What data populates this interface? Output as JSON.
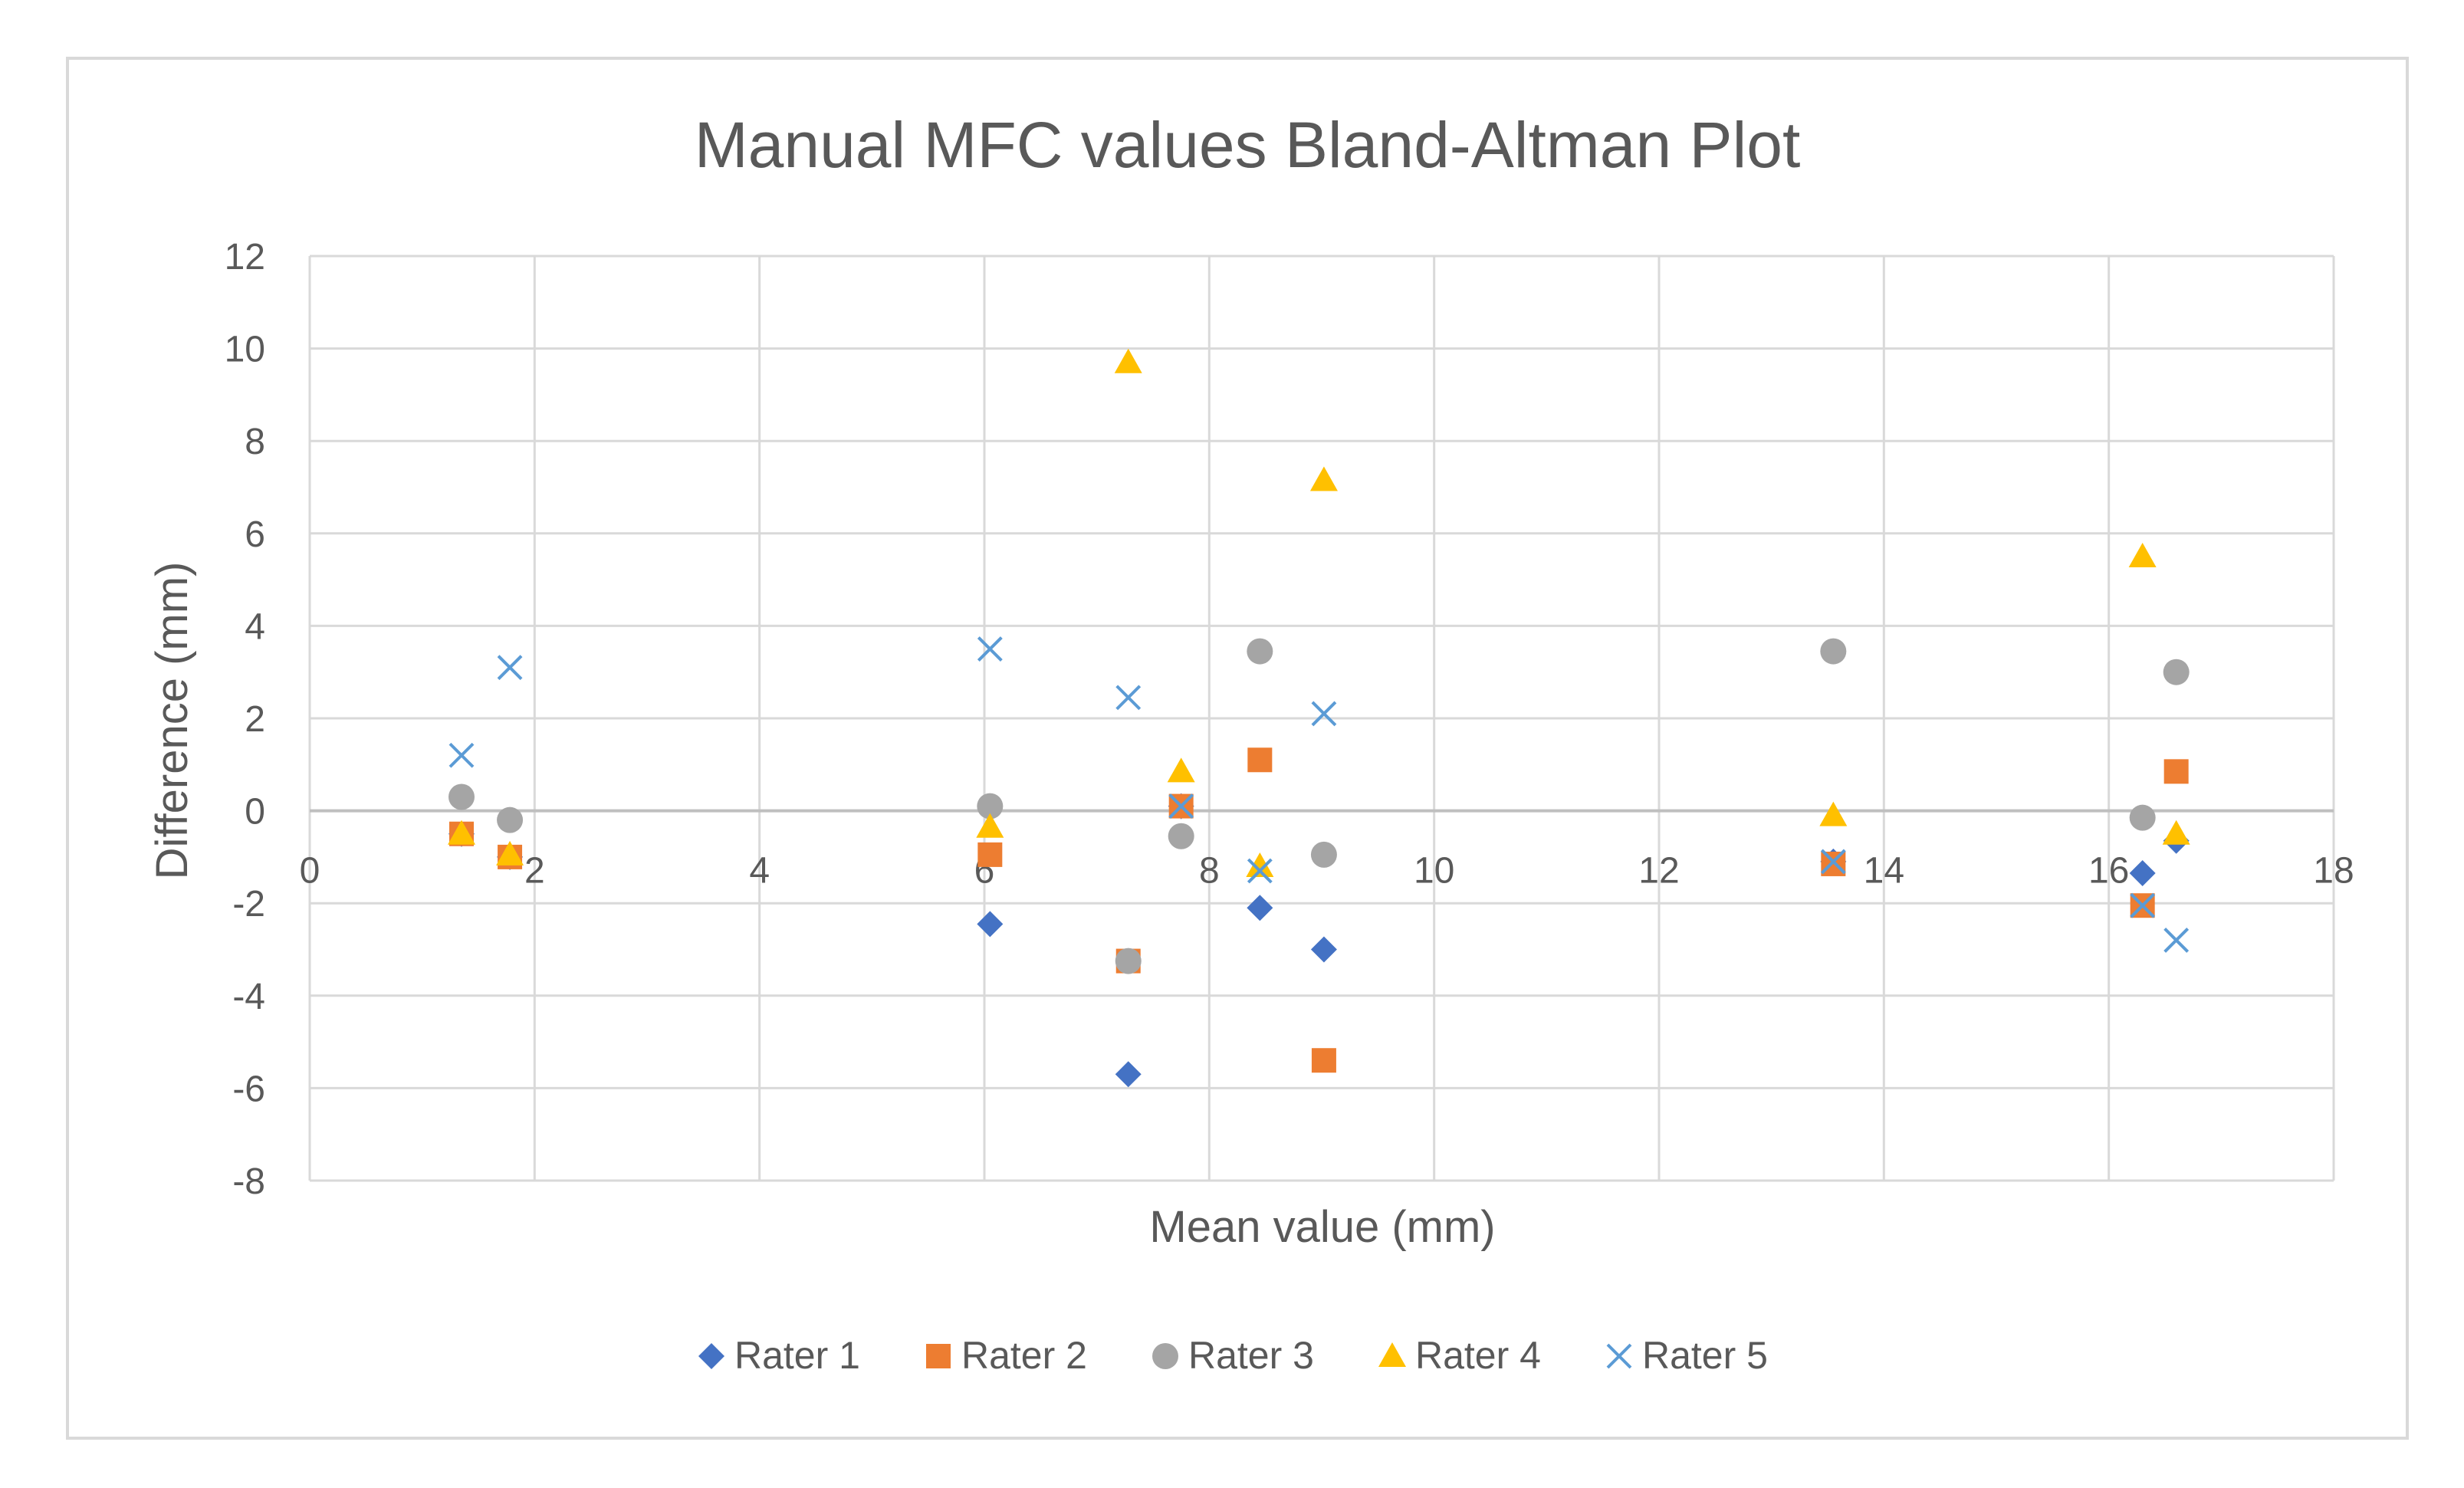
{
  "chart_data": {
    "type": "scatter",
    "title": "Manual MFC values Bland-Altman Plot",
    "xlabel": "Mean value (mm)",
    "ylabel": "Difference (mm)",
    "xlim": [
      0,
      18
    ],
    "ylim": [
      -8,
      12
    ],
    "xticks": [
      0,
      2,
      4,
      6,
      8,
      10,
      12,
      14,
      16,
      18
    ],
    "yticks": [
      -8,
      -6,
      -4,
      -2,
      0,
      2,
      4,
      6,
      8,
      10,
      12
    ],
    "grid": true,
    "legend_position": "bottom",
    "series": [
      {
        "name": "Rater 1",
        "marker": "diamond",
        "color": "#4472C4",
        "points": [
          {
            "x": 1.35,
            "y": -0.5
          },
          {
            "x": 1.78,
            "y": -1.0
          },
          {
            "x": 6.05,
            "y": -2.45
          },
          {
            "x": 7.28,
            "y": -5.7
          },
          {
            "x": 7.75,
            "y": 0.1
          },
          {
            "x": 8.45,
            "y": -2.1
          },
          {
            "x": 9.02,
            "y": -3.0
          },
          {
            "x": 13.55,
            "y": -1.1
          },
          {
            "x": 16.3,
            "y": -1.35
          },
          {
            "x": 16.6,
            "y": -0.65
          }
        ]
      },
      {
        "name": "Rater 2",
        "marker": "square",
        "color": "#ED7D31",
        "points": [
          {
            "x": 1.35,
            "y": -0.5
          },
          {
            "x": 1.78,
            "y": -1.0
          },
          {
            "x": 6.05,
            "y": -0.95
          },
          {
            "x": 7.28,
            "y": -3.25
          },
          {
            "x": 7.75,
            "y": 0.1
          },
          {
            "x": 8.45,
            "y": 1.1
          },
          {
            "x": 9.02,
            "y": -5.4
          },
          {
            "x": 13.55,
            "y": -1.15
          },
          {
            "x": 16.3,
            "y": -2.05
          },
          {
            "x": 16.6,
            "y": 0.85
          }
        ]
      },
      {
        "name": "Rater 3",
        "marker": "circle",
        "color": "#A5A5A5",
        "points": [
          {
            "x": 1.35,
            "y": 0.3
          },
          {
            "x": 1.78,
            "y": -0.2
          },
          {
            "x": 6.05,
            "y": 0.1
          },
          {
            "x": 7.28,
            "y": -3.25
          },
          {
            "x": 7.75,
            "y": -0.55
          },
          {
            "x": 8.45,
            "y": 3.45
          },
          {
            "x": 9.02,
            "y": -0.95
          },
          {
            "x": 13.55,
            "y": 3.45
          },
          {
            "x": 16.3,
            "y": -0.15
          },
          {
            "x": 16.6,
            "y": 3.0
          }
        ]
      },
      {
        "name": "Rater 4",
        "marker": "triangle",
        "color": "#FFC000",
        "points": [
          {
            "x": 1.35,
            "y": -0.5
          },
          {
            "x": 1.78,
            "y": -0.95
          },
          {
            "x": 6.05,
            "y": -0.35
          },
          {
            "x": 7.28,
            "y": 9.7
          },
          {
            "x": 7.75,
            "y": 0.85
          },
          {
            "x": 8.45,
            "y": -1.2
          },
          {
            "x": 9.02,
            "y": 7.15
          },
          {
            "x": 13.55,
            "y": -0.1
          },
          {
            "x": 16.3,
            "y": 5.5
          },
          {
            "x": 16.6,
            "y": -0.5
          }
        ]
      },
      {
        "name": "Rater 5",
        "marker": "x",
        "color": "#5B9BD5",
        "points": [
          {
            "x": 1.35,
            "y": 1.2
          },
          {
            "x": 1.78,
            "y": 3.1
          },
          {
            "x": 6.05,
            "y": 3.5
          },
          {
            "x": 7.28,
            "y": 2.45
          },
          {
            "x": 7.75,
            "y": 0.1
          },
          {
            "x": 8.45,
            "y": -1.3
          },
          {
            "x": 9.02,
            "y": 2.1
          },
          {
            "x": 13.55,
            "y": -1.1
          },
          {
            "x": 16.3,
            "y": -2.05
          },
          {
            "x": 16.6,
            "y": -2.8
          }
        ]
      }
    ]
  }
}
